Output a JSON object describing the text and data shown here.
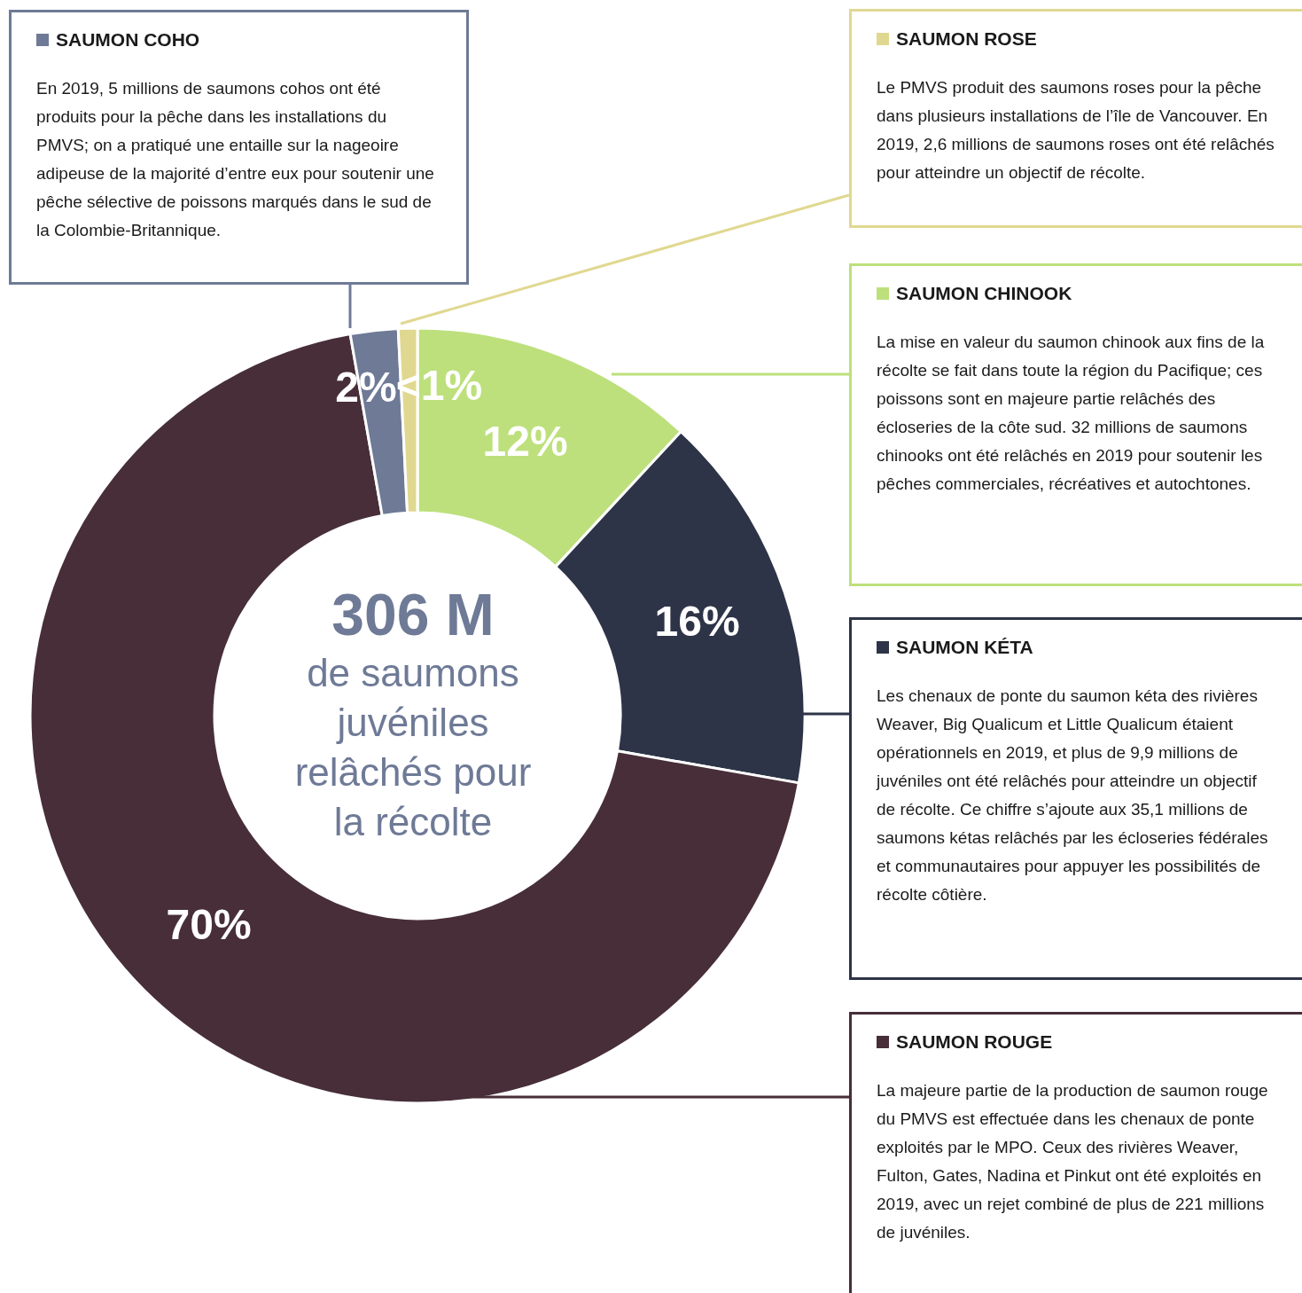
{
  "chart_data": {
    "type": "donut",
    "title": "306 M",
    "subtitle": "de saumons juvéniles relâchés pour la récolte",
    "categories": [
      "SAUMON CHINOOK",
      "SAUMON KÉTA",
      "SAUMON ROUGE",
      "SAUMON COHO",
      "SAUMON ROSE"
    ],
    "values": [
      12,
      16,
      70,
      2,
      0.8
    ],
    "value_labels": [
      "12%",
      "16%",
      "70%",
      "2%",
      "<1%"
    ],
    "colors": [
      "#bde07c",
      "#2e3447",
      "#472e39",
      "#6e7a96",
      "#e0d890"
    ],
    "annotations": [
      "La mise en valeur du saumon chinook aux fins de la récolte se fait dans toute la région du Pacifique; ces poissons sont en majeure partie relâchés des écloseries de la côte sud. 32 millions de saumons chinooks ont été relâchés en 2019 pour soutenir les pêches commerciales, récréatives et autochtones.",
      "Les chenaux de ponte du saumon kéta des rivières Weaver, Big Qualicum et Little Qualicum étaient opérationnels en 2019, et plus de 9,9 millions de juvéniles ont été relâchés pour atteindre un objectif de récolte. Ce chiffre s’ajoute aux 35,1 millions de saumons kétas relâchés par les écloseries fédérales et communautaires pour appuyer les possibilités de récolte côtière.",
      "La majeure partie de la production de saumon rouge du PMVS est effectuée dans les chenaux de ponte exploités par le MPO. Ceux des rivières Weaver, Fulton, Gates, Nadina et Pinkut ont été exploités en 2019, avec un rejet combiné de plus de 221 millions de juvéniles.",
      "En 2019, 5 millions de saumons cohos ont été produits pour la pêche dans les installations du PMVS; on a pratiqué une entaille sur la nageoire adipeuse de la majorité d’entre eux pour soutenir une pêche sélective de poissons marqués dans le sud de la Colombie-Britannique.",
      "Le PMVS produit des saumons roses pour la pêche dans plusieurs installations de l’île de Vancouver. En 2019, 2,6 millions de saumons roses ont été relâchés pour atteindre un objectif de récolte."
    ],
    "legend": "right"
  }
}
